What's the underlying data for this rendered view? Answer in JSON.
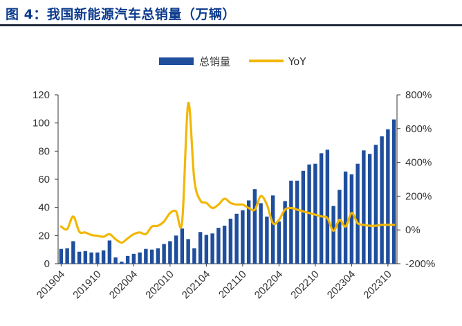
{
  "title": "图 4：我国新能源汽车总销量（万辆）",
  "colors": {
    "bar": "#1f4e9c",
    "line": "#f2b705",
    "axis": "#333333"
  },
  "chart_data": {
    "type": "bar+line",
    "legend": {
      "position": "top-center",
      "items": [
        "总销量",
        "YoY"
      ]
    },
    "y_left": {
      "ylim": [
        0,
        120
      ],
      "ticks": [
        "0",
        "20",
        "40",
        "60",
        "80",
        "100",
        "120"
      ]
    },
    "y_right": {
      "ylim": [
        -200,
        800
      ],
      "ticks": [
        "-200%",
        "0%",
        "200%",
        "400%",
        "600%",
        "800%"
      ]
    },
    "x_tick_labels": [
      "201904",
      "201910",
      "202004",
      "202010",
      "202104",
      "202110",
      "202204",
      "202210",
      "202304",
      "202310"
    ],
    "categories": [
      "201904",
      "201905",
      "201906",
      "201907",
      "201908",
      "201909",
      "201910",
      "201911",
      "201912",
      "202001",
      "202002",
      "202003",
      "202004",
      "202005",
      "202006",
      "202007",
      "202008",
      "202009",
      "202010",
      "202011",
      "202012",
      "202101",
      "202102",
      "202103",
      "202104",
      "202105",
      "202106",
      "202107",
      "202108",
      "202109",
      "202110",
      "202111",
      "202112",
      "202201",
      "202202",
      "202203",
      "202204",
      "202205",
      "202206",
      "202207",
      "202208",
      "202209",
      "202210",
      "202211",
      "202212",
      "202301",
      "202302",
      "202303",
      "202304",
      "202305",
      "202306",
      "202307",
      "202308",
      "202309",
      "202310",
      "202311"
    ],
    "series": [
      {
        "name": "总销量",
        "type": "bar",
        "axis": "left",
        "values": [
          10.5,
          11,
          16,
          8.5,
          9,
          8,
          8,
          9.5,
          16.5,
          4.5,
          1.5,
          5.5,
          7,
          8,
          10.5,
          10,
          11,
          14,
          16,
          20,
          25,
          17.5,
          11,
          22.5,
          20.5,
          21.5,
          25.5,
          27,
          32,
          35.5,
          38,
          45,
          53,
          43,
          33.5,
          48.5,
          30,
          44.5,
          59,
          59,
          66,
          70.5,
          71,
          78.5,
          81,
          41,
          52.5,
          65.5,
          63.5,
          71,
          80.5,
          78,
          84.5,
          90.5,
          95.5,
          102.5
        ]
      },
      {
        "name": "YoY",
        "type": "line",
        "axis": "right",
        "values": [
          20,
          5,
          80,
          -10,
          -15,
          -30,
          -35,
          -40,
          -25,
          -55,
          -75,
          -50,
          -25,
          -15,
          -25,
          20,
          25,
          50,
          100,
          110,
          50,
          750,
          300,
          175,
          160,
          130,
          150,
          185,
          160,
          150,
          150,
          130,
          120,
          200,
          150,
          40,
          60,
          120,
          130,
          120,
          110,
          100,
          90,
          80,
          70,
          -5,
          60,
          20,
          100,
          40,
          30,
          25,
          25,
          30,
          30,
          30
        ]
      }
    ]
  }
}
